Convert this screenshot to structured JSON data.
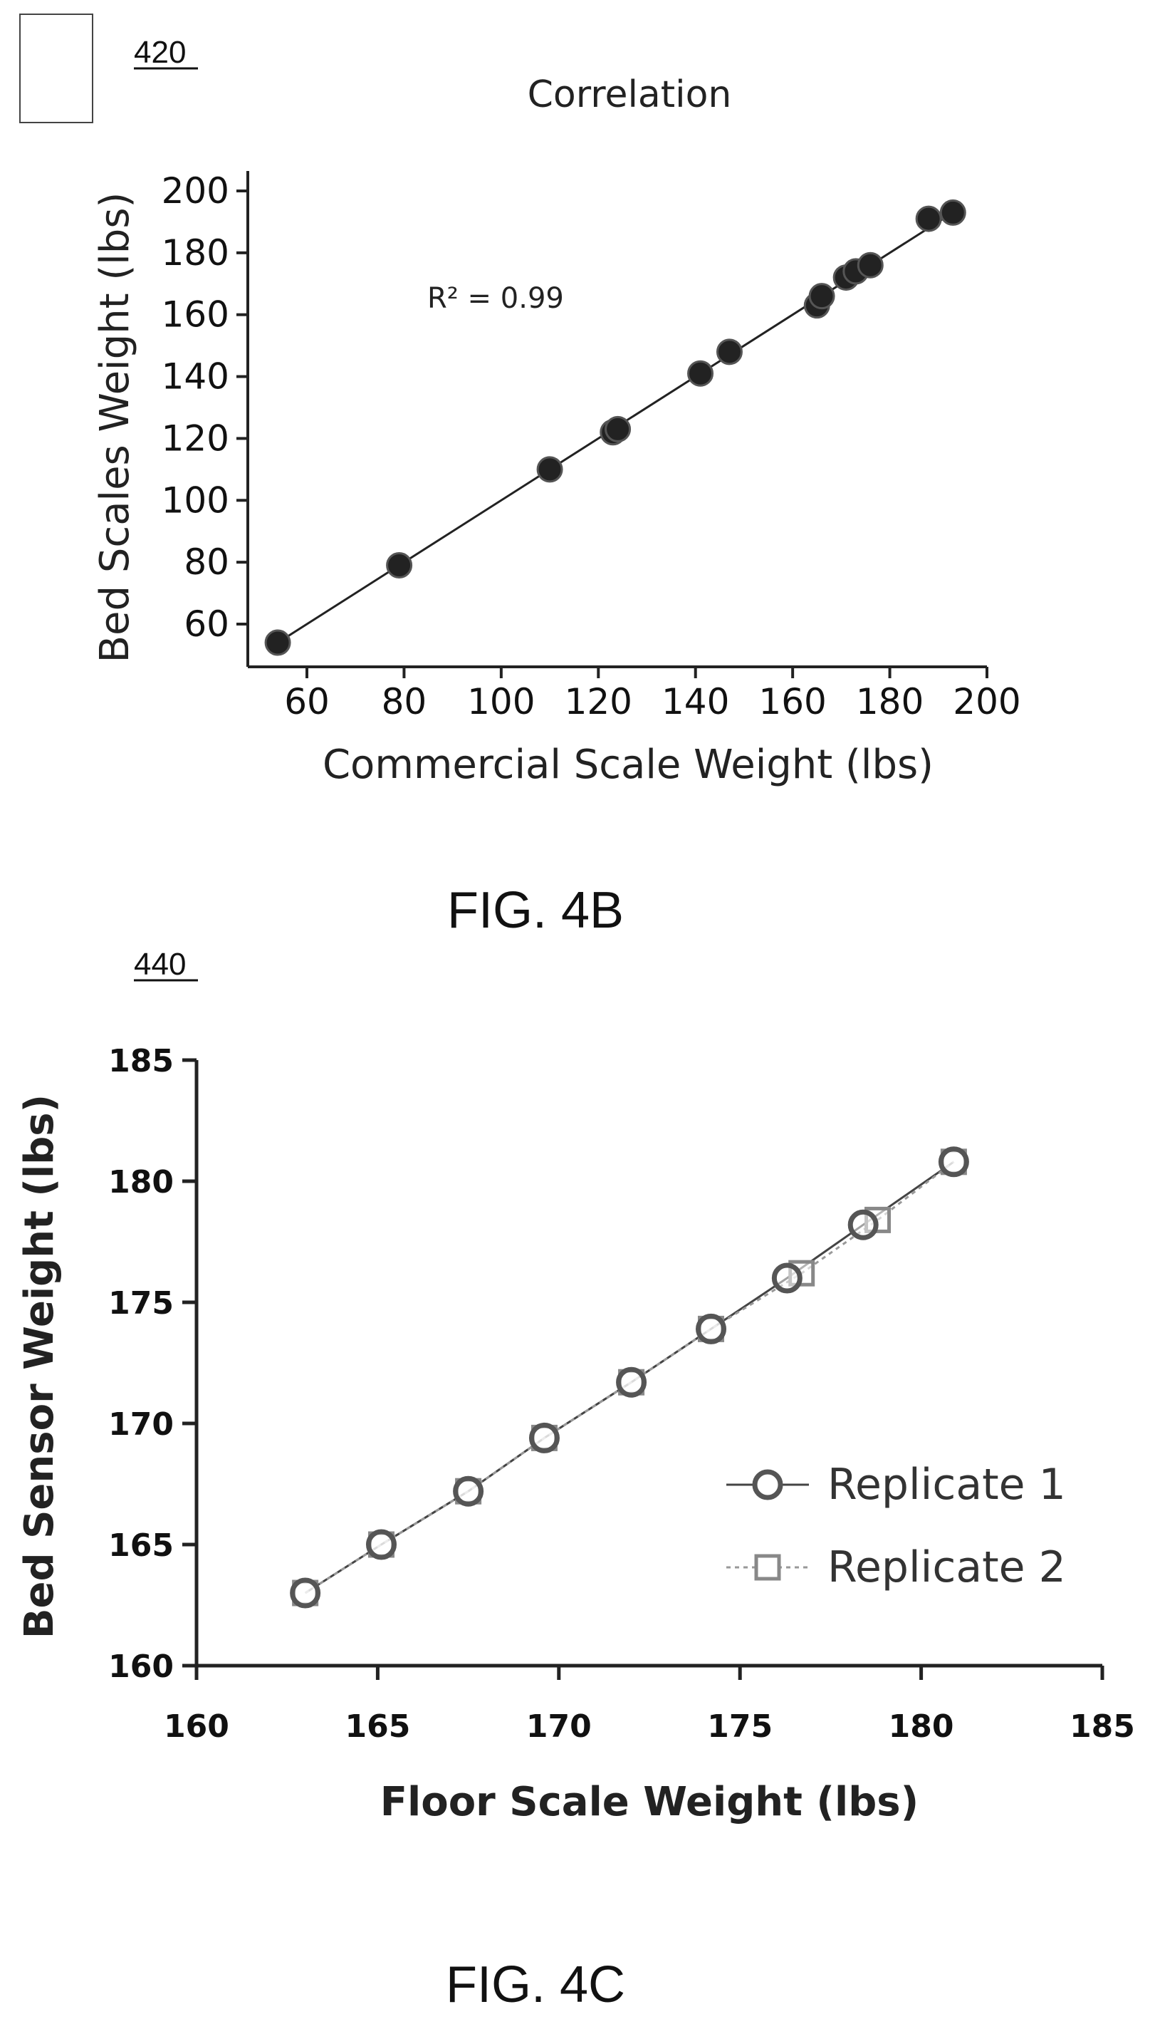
{
  "chart_data": [
    {
      "type": "scatter",
      "ref_number": "420",
      "title": "Correlation",
      "xlabel": "Commercial Scale Weight (lbs)",
      "ylabel": "Bed Scales Weight (lbs)",
      "annotation": "R² = 0.99",
      "xlim": [
        50,
        200
      ],
      "ylim": [
        50,
        200
      ],
      "xticks": [
        60,
        80,
        100,
        120,
        140,
        160,
        180,
        200
      ],
      "yticks": [
        60,
        80,
        100,
        120,
        140,
        160,
        180,
        200
      ],
      "trendline": {
        "x": [
          54,
          193
        ],
        "y": [
          54,
          193
        ]
      },
      "series": [
        {
          "x": [
            54,
            79,
            110,
            123,
            124,
            141,
            147,
            165,
            166,
            171,
            173,
            176,
            188,
            193
          ],
          "y": [
            54,
            79,
            110,
            122,
            123,
            141,
            148,
            163,
            166,
            172,
            174,
            176,
            191,
            193
          ]
        }
      ],
      "figure_label": "FIG. 4B"
    },
    {
      "type": "line",
      "ref_number": "440",
      "xlabel": "Floor Scale Weight (lbs)",
      "ylabel": "Bed Sensor Weight (lbs)",
      "xlim": [
        160,
        185
      ],
      "ylim": [
        160,
        185
      ],
      "xticks": [
        160,
        165,
        170,
        175,
        180,
        185
      ],
      "yticks": [
        160,
        165,
        170,
        175,
        180,
        185
      ],
      "legend_position": "right",
      "series": [
        {
          "name": "Replicate 1",
          "marker": "circle",
          "x": [
            163,
            165.1,
            167.5,
            169.6,
            172,
            174.2,
            176.3,
            178.4,
            180.9
          ],
          "y": [
            163,
            165,
            167.2,
            169.4,
            171.7,
            173.9,
            176,
            178.2,
            180.8
          ]
        },
        {
          "name": "Replicate 2",
          "marker": "square",
          "x": [
            163,
            165.1,
            167.5,
            169.6,
            172,
            174.2,
            176.7,
            178.8,
            180.9
          ],
          "y": [
            163,
            165,
            167.2,
            169.4,
            171.7,
            173.9,
            176.2,
            178.4,
            180.8
          ]
        }
      ],
      "figure_label": "FIG. 4C"
    }
  ]
}
